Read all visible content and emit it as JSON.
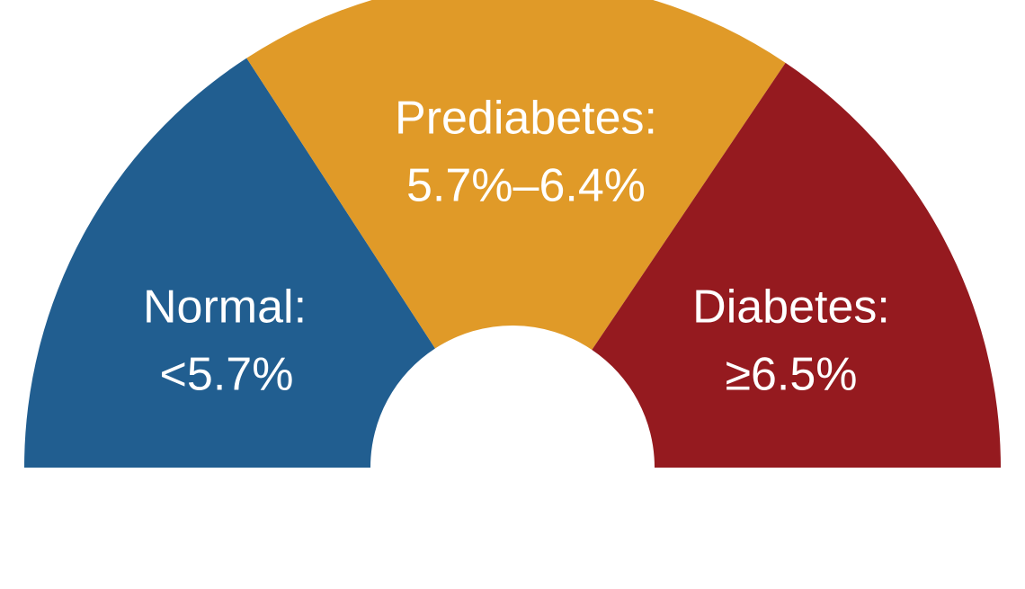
{
  "segments": [
    {
      "label": "Normal:",
      "range": "<5.7%",
      "color": "#215e90"
    },
    {
      "label": "Prediabetes:",
      "range": "5.7%–6.4%",
      "color": "#e09a28"
    },
    {
      "label": "Diabetes:",
      "range": "≥6.5%",
      "color": "#951a1f"
    }
  ]
}
